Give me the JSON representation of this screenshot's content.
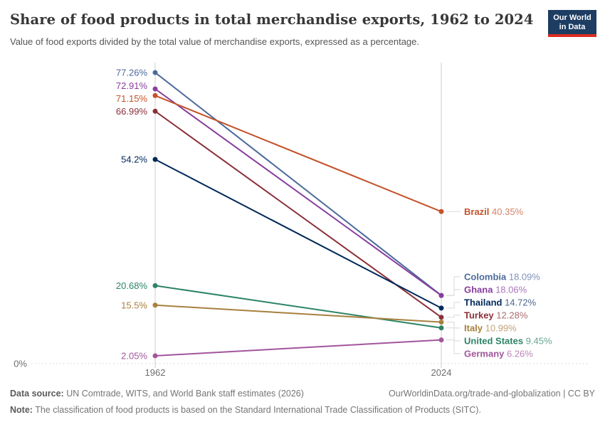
{
  "header": {
    "title": "Share of food products in total merchandise exports, 1962 to 2024",
    "subtitle": "Value of food exports divided by the total value of merchandise exports, expressed as a percentage.",
    "logo": {
      "line1": "Our World",
      "line2": "in Data",
      "bg_color": "#1D3D63",
      "accent_color": "#DC2E23"
    }
  },
  "chart_data": {
    "type": "line",
    "subtype": "slope",
    "x_ticks": [
      "1962",
      "2024"
    ],
    "baseline_label": "0%",
    "ylim": [
      0,
      80
    ],
    "grid": "zero-baseline-only",
    "legend_position": "end-of-line-labels",
    "series": [
      {
        "name": "Colombia",
        "color": "#4C6A9C",
        "values": [
          77.26,
          18.09
        ]
      },
      {
        "name": "Ghana",
        "color": "#883E9F",
        "values": [
          72.91,
          18.06
        ]
      },
      {
        "name": "Brazil",
        "color": "#C4522B",
        "values": [
          71.15,
          40.35
        ]
      },
      {
        "name": "Turkey",
        "color": "#8B3039",
        "values": [
          66.99,
          12.28
        ]
      },
      {
        "name": "Thailand",
        "color": "#00295B",
        "values": [
          54.2,
          14.72
        ]
      },
      {
        "name": "United States",
        "color": "#2C8465",
        "values": [
          20.68,
          9.45
        ]
      },
      {
        "name": "Italy",
        "color": "#A8803E",
        "values": [
          15.5,
          10.99
        ]
      },
      {
        "name": "Germany",
        "color": "#A2559C",
        "values": [
          2.05,
          6.26
        ]
      }
    ]
  },
  "footer": {
    "source_label": "Data source:",
    "source_text": "UN Comtrade, WITS, and World Bank staff estimates (2026)",
    "link_text": "OurWorldinData.org/trade-and-globalization | CC BY",
    "note_label": "Note:",
    "note_text": "The classification of food products is based on the Standard International Trade Classification of Products (SITC)."
  }
}
